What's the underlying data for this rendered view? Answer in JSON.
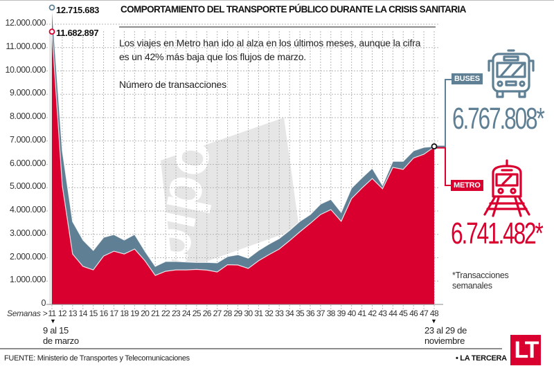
{
  "header": {
    "title": "COMPORTAMIENTO DEL TRANSPORTE PÚBLICO DURANTE LA CRISIS SANITARIA",
    "description": "Los viajes en Metro han ido al alza en los últimos meses, aunque la cifra es un 42% más baja que los flujos de marzo."
  },
  "colors": {
    "metro": "#d9002f",
    "buses": "#5f7f94",
    "grid": "#b5b5b5",
    "watermark": "#e6e6e6"
  },
  "chart_data": {
    "type": "area",
    "title": "COMPORTAMIENTO DEL TRANSPORTE PÚBLICO DURANTE LA CRISIS SANITARIA",
    "ylabel": "Número de transacciones",
    "xlabel": "Semanas >",
    "ylim": [
      0,
      12000000
    ],
    "yticks": [
      0,
      1000000,
      2000000,
      3000000,
      4000000,
      5000000,
      6000000,
      7000000,
      8000000,
      9000000,
      10000000,
      11000000,
      12000000
    ],
    "ytick_labels": [
      "0",
      "1.000.000",
      "2.000.000",
      "3.000.000",
      "4.000.000",
      "5.000.000",
      "6.000.000",
      "7.000.000",
      "8.000.000",
      "9.000.000",
      "10.000.000",
      "11.000.000",
      "12.000.000"
    ],
    "x": [
      11,
      12,
      13,
      14,
      15,
      16,
      17,
      18,
      19,
      20,
      21,
      22,
      23,
      24,
      25,
      26,
      27,
      28,
      29,
      30,
      31,
      32,
      33,
      34,
      35,
      36,
      37,
      38,
      39,
      40,
      41,
      42,
      43,
      44,
      45,
      46,
      47,
      48
    ],
    "grid": true,
    "series": [
      {
        "name": "Buses",
        "color": "#5f7f94",
        "values": [
          12715683,
          6600000,
          3550000,
          2760000,
          2310000,
          2870000,
          2990000,
          2760000,
          3000000,
          2280000,
          1630000,
          1840000,
          1840000,
          1820000,
          1800000,
          1800000,
          1780000,
          2050000,
          2130000,
          1980000,
          2310000,
          2580000,
          2820000,
          3170000,
          3560000,
          3850000,
          4300000,
          4500000,
          3940000,
          4980000,
          5420000,
          5830000,
          5100000,
          6130000,
          6130000,
          6580000,
          6730000,
          6767808
        ]
      },
      {
        "name": "Metro",
        "color": "#d9002f",
        "values": [
          11682897,
          5100000,
          2160000,
          1630000,
          1480000,
          2070000,
          2280000,
          2160000,
          2370000,
          1870000,
          1240000,
          1420000,
          1480000,
          1480000,
          1500000,
          1470000,
          1390000,
          1700000,
          1690000,
          1540000,
          1870000,
          2130000,
          2370000,
          2730000,
          3110000,
          3470000,
          3850000,
          4060000,
          3560000,
          4530000,
          4980000,
          5390000,
          4950000,
          5870000,
          5780000,
          6270000,
          6430000,
          6741482
        ]
      }
    ],
    "annotations": {
      "peak_buses": "12.715.683",
      "peak_metro": "11.682.897",
      "start_week_label": [
        "9 al 15",
        "de marzo"
      ],
      "end_week_label": [
        "23 al 29 de",
        "noviembre"
      ]
    },
    "legend": {
      "buses_label": "BUSES",
      "buses_value": "6.767.808*",
      "metro_label": "METRO",
      "metro_value": "6.741.482*",
      "placement": "right"
    }
  },
  "watermark_text": "bipo!",
  "footnote": [
    "*Transacciones",
    "semanales"
  ],
  "footer": {
    "source": "FUENTE: Ministerio de Transportes y Telecomunicaciones",
    "brand": "• LA TERCERA",
    "logo": "LT"
  },
  "icons": {
    "buses": "bus-front-icon",
    "metro": "train-front-icon"
  }
}
